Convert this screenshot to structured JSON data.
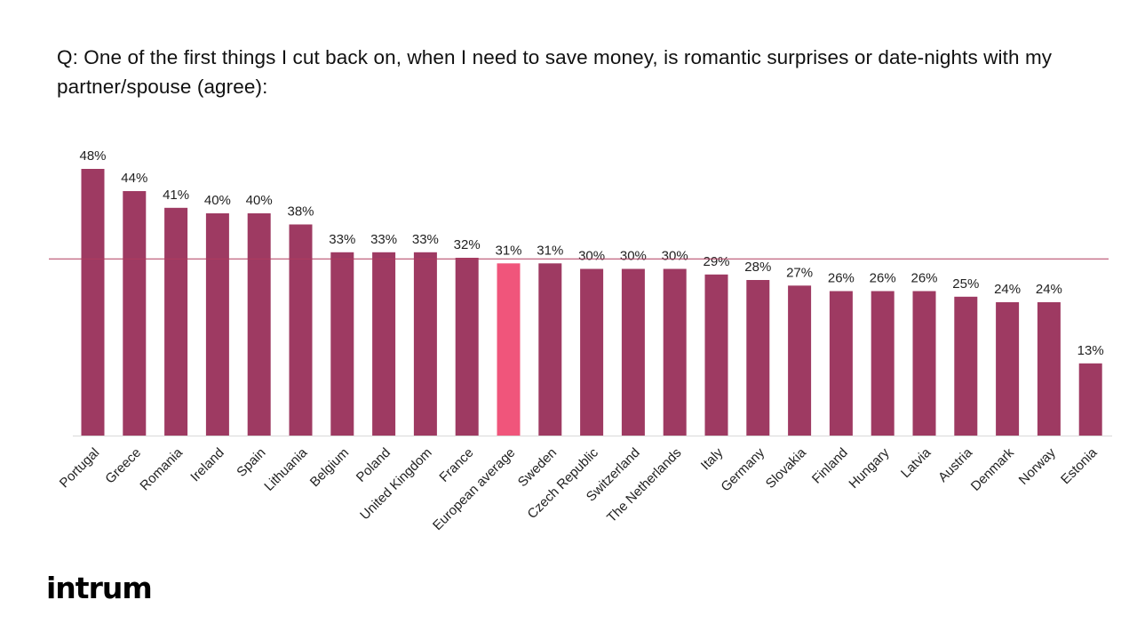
{
  "title": "Q: One of the first things I cut back on, when I need to save money, is romantic surprises or date-nights with my partner/spouse (agree):",
  "logo": "intrum",
  "colors": {
    "bar": "#9e3a62",
    "highlight": "#f0557b",
    "average_line": "#b03a5e",
    "axis": "#d9d9d9"
  },
  "chart_data": {
    "type": "bar",
    "title": "Q: One of the first things I cut back on, when I need to save money, is romantic surprises or date-nights with my partner/spouse (agree):",
    "xlabel": "",
    "ylabel": "",
    "ylim": [
      0,
      48
    ],
    "unit": "%",
    "grid": false,
    "legend": "none",
    "reference_line": {
      "value": 31
    },
    "highlight_category": "European average",
    "categories": [
      "Portugal",
      "Greece",
      "Romania",
      "Ireland",
      "Spain",
      "Lithuania",
      "Belgium",
      "Poland",
      "United Kingdom",
      "France",
      "European average",
      "Sweden",
      "Czech Republic",
      "Switzerland",
      "The Netherlands",
      "Italy",
      "Germany",
      "Slovakia",
      "Finland",
      "Hungary",
      "Latvia",
      "Austria",
      "Denmark",
      "Norway",
      "Estonia"
    ],
    "values": [
      48,
      44,
      41,
      40,
      40,
      38,
      33,
      33,
      33,
      32,
      31,
      31,
      30,
      30,
      30,
      29,
      28,
      27,
      26,
      26,
      26,
      25,
      24,
      24,
      13
    ],
    "labels": [
      "48%",
      "44%",
      "41%",
      "40%",
      "40%",
      "38%",
      "33%",
      "33%",
      "33%",
      "32%",
      "31%",
      "31%",
      "30%",
      "30%",
      "30%",
      "29%",
      "28%",
      "27%",
      "26%",
      "26%",
      "26%",
      "25%",
      "24%",
      "24%",
      "13%"
    ]
  }
}
